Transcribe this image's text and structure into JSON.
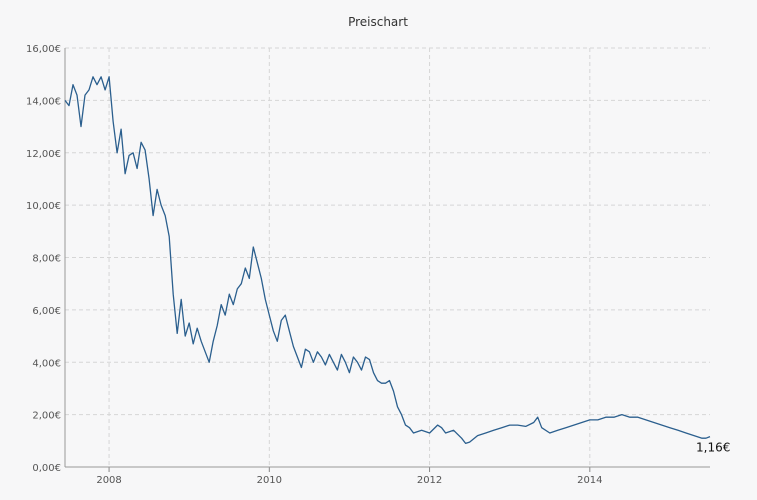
{
  "chart_data": {
    "type": "line",
    "title": "Preischart",
    "xlabel": "",
    "ylabel": "",
    "x_range": [
      2007.45,
      2015.5
    ],
    "ylim": [
      0,
      16
    ],
    "grid": true,
    "y_ticks": [
      {
        "value": 0,
        "label": "0,00€"
      },
      {
        "value": 2,
        "label": "2,00€"
      },
      {
        "value": 4,
        "label": "4,00€"
      },
      {
        "value": 6,
        "label": "6,00€"
      },
      {
        "value": 8,
        "label": "8,00€"
      },
      {
        "value": 10,
        "label": "10,00€"
      },
      {
        "value": 12,
        "label": "12,00€"
      },
      {
        "value": 14,
        "label": "14,00€"
      },
      {
        "value": 16,
        "label": "16,00€"
      }
    ],
    "x_ticks": [
      {
        "value": 2008,
        "label": "2008"
      },
      {
        "value": 2010,
        "label": "2010"
      },
      {
        "value": 2012,
        "label": "2012"
      },
      {
        "value": 2014,
        "label": "2014"
      }
    ],
    "series": [
      {
        "color": "#2b5f8e",
        "x": [
          2007.45,
          2007.5,
          2007.55,
          2007.6,
          2007.65,
          2007.7,
          2007.75,
          2007.8,
          2007.85,
          2007.9,
          2007.95,
          2008.0,
          2008.05,
          2008.1,
          2008.15,
          2008.2,
          2008.25,
          2008.3,
          2008.35,
          2008.4,
          2008.45,
          2008.5,
          2008.55,
          2008.6,
          2008.65,
          2008.7,
          2008.75,
          2008.8,
          2008.85,
          2008.9,
          2008.95,
          2009.0,
          2009.05,
          2009.1,
          2009.15,
          2009.2,
          2009.25,
          2009.3,
          2009.35,
          2009.4,
          2009.45,
          2009.5,
          2009.55,
          2009.6,
          2009.65,
          2009.7,
          2009.75,
          2009.8,
          2009.85,
          2009.9,
          2009.95,
          2010.0,
          2010.05,
          2010.1,
          2010.15,
          2010.2,
          2010.25,
          2010.3,
          2010.35,
          2010.4,
          2010.45,
          2010.5,
          2010.55,
          2010.6,
          2010.65,
          2010.7,
          2010.75,
          2010.8,
          2010.85,
          2010.9,
          2010.95,
          2011.0,
          2011.05,
          2011.1,
          2011.15,
          2011.2,
          2011.25,
          2011.3,
          2011.35,
          2011.4,
          2011.45,
          2011.5,
          2011.55,
          2011.6,
          2011.65,
          2011.7,
          2011.75,
          2011.8,
          2011.9,
          2012.0,
          2012.1,
          2012.15,
          2012.2,
          2012.3,
          2012.4,
          2012.45,
          2012.5,
          2012.6,
          2012.7,
          2012.8,
          2012.9,
          2013.0,
          2013.1,
          2013.2,
          2013.3,
          2013.35,
          2013.4,
          2013.5,
          2013.6,
          2013.7,
          2013.8,
          2013.9,
          2014.0,
          2014.1,
          2014.2,
          2014.3,
          2014.4,
          2014.5,
          2014.6,
          2014.7,
          2014.8,
          2014.9,
          2015.0,
          2015.1,
          2015.2,
          2015.3,
          2015.4,
          2015.45,
          2015.5
        ],
        "y": [
          14.0,
          13.8,
          14.6,
          14.2,
          13.0,
          14.2,
          14.4,
          14.9,
          14.6,
          14.9,
          14.4,
          14.9,
          13.2,
          12.0,
          12.9,
          11.2,
          11.9,
          12.0,
          11.4,
          12.4,
          12.1,
          11.0,
          9.6,
          10.6,
          10.0,
          9.6,
          8.8,
          6.6,
          5.1,
          6.4,
          5.0,
          5.5,
          4.7,
          5.3,
          4.8,
          4.4,
          4.0,
          4.8,
          5.4,
          6.2,
          5.8,
          6.6,
          6.2,
          6.8,
          7.0,
          7.6,
          7.2,
          8.4,
          7.8,
          7.2,
          6.4,
          5.8,
          5.2,
          4.8,
          5.6,
          5.8,
          5.2,
          4.6,
          4.2,
          3.8,
          4.5,
          4.4,
          4.0,
          4.4,
          4.2,
          3.9,
          4.3,
          4.0,
          3.7,
          4.3,
          4.0,
          3.6,
          4.2,
          4.0,
          3.7,
          4.2,
          4.1,
          3.6,
          3.3,
          3.2,
          3.2,
          3.3,
          2.9,
          2.3,
          2.0,
          1.6,
          1.5,
          1.3,
          1.4,
          1.3,
          1.6,
          1.5,
          1.3,
          1.4,
          1.1,
          0.9,
          0.95,
          1.2,
          1.3,
          1.4,
          1.5,
          1.6,
          1.6,
          1.55,
          1.7,
          1.9,
          1.5,
          1.3,
          1.4,
          1.5,
          1.6,
          1.7,
          1.8,
          1.8,
          1.9,
          1.9,
          2.0,
          1.9,
          1.9,
          1.8,
          1.7,
          1.6,
          1.5,
          1.4,
          1.3,
          1.2,
          1.1,
          1.1,
          1.16
        ]
      }
    ],
    "last_value_label": "1,16€"
  }
}
